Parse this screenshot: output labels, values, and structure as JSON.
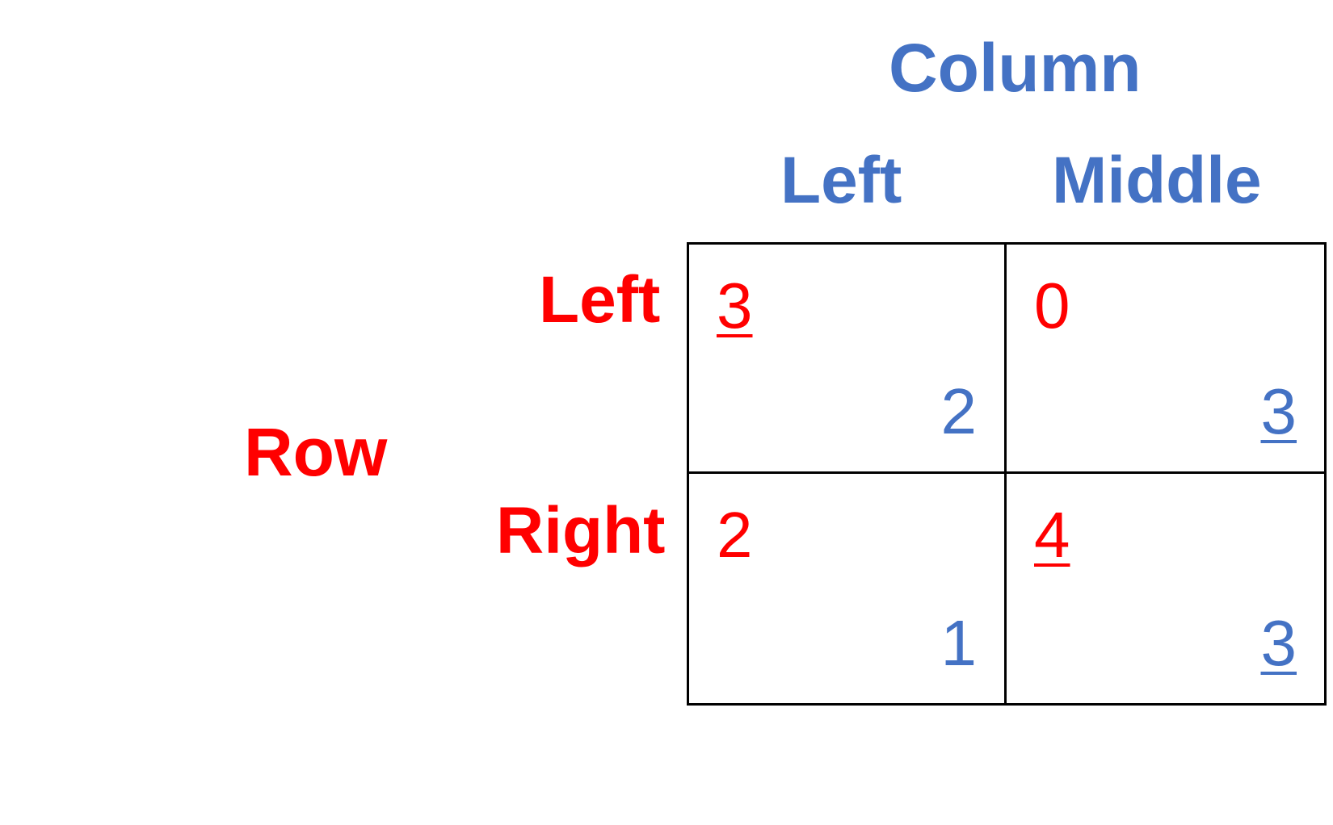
{
  "column_player": {
    "name": "Column",
    "color": "#4472C4"
  },
  "row_player": {
    "name": "Row",
    "color": "#FF0000"
  },
  "column_strategies": [
    "Left",
    "Middle"
  ],
  "row_strategies": [
    "Left",
    "Right"
  ],
  "payoffs": [
    [
      {
        "row": "3",
        "col": "2",
        "row_best": true,
        "col_best": false
      },
      {
        "row": "0",
        "col": "3",
        "row_best": false,
        "col_best": true
      }
    ],
    [
      {
        "row": "2",
        "col": "1",
        "row_best": false,
        "col_best": false
      },
      {
        "row": "4",
        "col": "3",
        "row_best": true,
        "col_best": true
      }
    ]
  ]
}
